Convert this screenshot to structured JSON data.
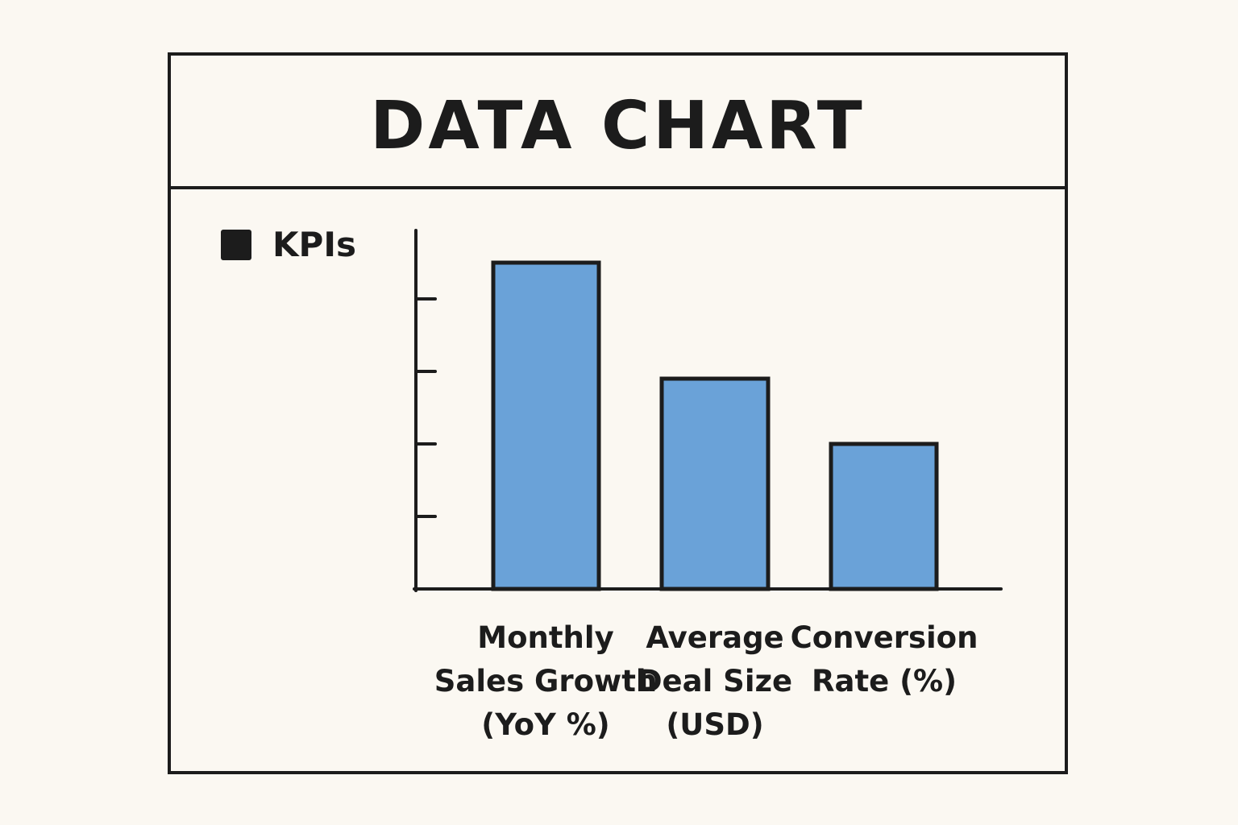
{
  "chart_data": {
    "type": "bar",
    "title": "DATA CHART",
    "categories": [
      "Monthly Sales Growth (YoY %)",
      "Average Deal Size (USD)",
      "Conversion Rate (%)"
    ],
    "category_lines": [
      [
        "Monthly",
        "Sales Growth",
        "(YoY %)"
      ],
      [
        "Average",
        "Deal Size",
        "(USD)"
      ],
      [
        "Conversion",
        "Rate (%)"
      ]
    ],
    "series": [
      {
        "name": "KPIs",
        "values": [
          4.5,
          2.9,
          2.0
        ],
        "color": "#6aa2d8"
      }
    ],
    "xlabel": "",
    "ylabel": "",
    "ylim": [
      0,
      5
    ],
    "y_ticks_count": 4,
    "y_tick_labels_shown": false,
    "grid": false,
    "legend_position": "top-left",
    "note": "Y-axis has unlabeled tick marks; values are relative heights in tick units."
  },
  "legend": {
    "label": "KPIs",
    "swatch_color": "#1c1c1c"
  },
  "colors": {
    "bar_fill": "#6aa2d8",
    "stroke": "#1c1c1c",
    "background": "#fbf8f2"
  }
}
